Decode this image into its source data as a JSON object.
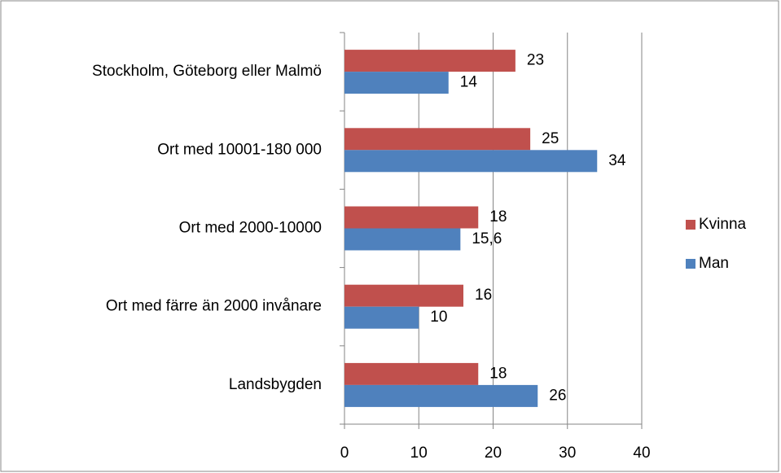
{
  "chart_data": {
    "type": "barh",
    "categories": [
      "Stockholm, Göteborg eller Malmö",
      "Ort med 10001-180 000",
      "Ort med 2000-10000",
      "Ort med färre än 2000 invånare",
      "Landsbygden"
    ],
    "series": [
      {
        "name": "Kvinna",
        "color": "#c0504d",
        "values": [
          23,
          25,
          18,
          16,
          18
        ]
      },
      {
        "name": "Man",
        "color": "#4f81bd",
        "values": [
          14,
          34,
          15.6,
          10,
          26
        ],
        "value_labels": [
          "14",
          "34",
          "15,6",
          "10",
          "26"
        ]
      }
    ],
    "xlim": [
      0,
      40
    ],
    "xticks": [
      0,
      10,
      20,
      30,
      40
    ],
    "grid": true,
    "legend": "right"
  }
}
